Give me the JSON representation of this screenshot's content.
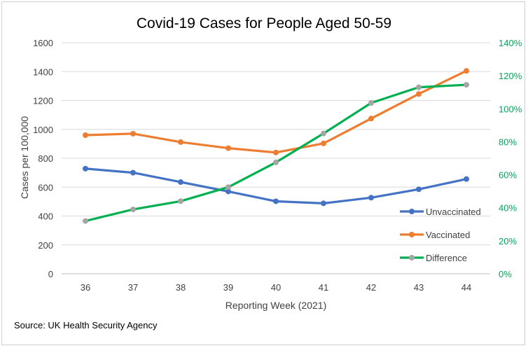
{
  "chart_data": {
    "type": "line",
    "title": "Covid-19 Cases for People Aged 50-59",
    "xlabel": "Reporting Week (2021)",
    "ylabel": "Cases per 100,000",
    "source": "Source: UK Health Security Agency",
    "x": [
      "36",
      "37",
      "38",
      "39",
      "40",
      "41",
      "42",
      "43",
      "44"
    ],
    "ylim": [
      0,
      1600
    ],
    "yticks": [
      "0",
      "200",
      "400",
      "600",
      "800",
      "1000",
      "1200",
      "1400",
      "1600"
    ],
    "y2lim": [
      0,
      1.4
    ],
    "y2ticks": [
      "0%",
      "20%",
      "40%",
      "60%",
      "80%",
      "100%",
      "120%",
      "140%"
    ],
    "legend_position": "bottom-right",
    "series": [
      {
        "name": "Unvaccinated",
        "axis": "left",
        "color": "#4472c4",
        "marker_color": "#4472c4",
        "values": [
          728,
          700,
          635,
          570,
          502,
          488,
          527,
          585,
          656
        ]
      },
      {
        "name": "Vaccinated",
        "axis": "left",
        "color": "#ed7d31",
        "marker_color": "#ed7d31",
        "values": [
          960,
          970,
          912,
          870,
          840,
          903,
          1075,
          1245,
          1405
        ]
      },
      {
        "name": "Difference",
        "axis": "right",
        "color": "#00b050",
        "marker_color": "#a5a5a5",
        "values": [
          0.32,
          0.39,
          0.44,
          0.525,
          0.675,
          0.85,
          1.035,
          1.13,
          1.145
        ]
      }
    ]
  }
}
